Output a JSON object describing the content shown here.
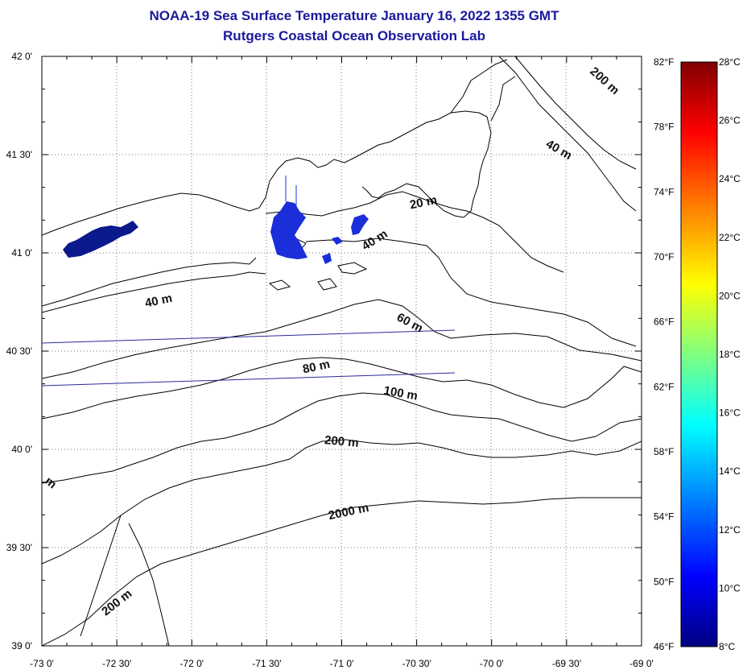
{
  "header": {
    "title": "NOAA-19 Sea Surface Temperature January 16, 2022 1355 GMT",
    "subtitle": "Rutgers Coastal Ocean Observation Lab"
  },
  "map": {
    "latitude_labels": [
      "42 0'",
      "41 30'",
      "41 0'",
      "40 30'",
      "40 0'",
      "39 30'",
      "39 0'"
    ],
    "longitude_labels": [
      "-73 0'",
      "-72 30'",
      "-72 0'",
      "-71 30'",
      "-71 0'",
      "-70 30'",
      "-70 0'",
      "-69 30'",
      "-69 0'"
    ],
    "lat_range": [
      39.0,
      42.0
    ],
    "lon_range": [
      -73.0,
      -69.0
    ],
    "grid": "dotted",
    "contour_labels": [
      "200 m",
      "40 m",
      "20 m",
      "40 m",
      "40 m",
      "60 m",
      "80 m",
      "100 m",
      "200 m",
      "2000 m",
      "200 m",
      "m"
    ],
    "land_color": "#ffffff",
    "sst_patch_colors": [
      "#0a1a8c",
      "#1a2fd9"
    ]
  },
  "colorbar": {
    "fahrenheit_labels": [
      "82°F",
      "78°F",
      "74°F",
      "70°F",
      "66°F",
      "62°F",
      "58°F",
      "54°F",
      "50°F",
      "46°F"
    ],
    "celsius_labels": [
      "28°C",
      "26°C",
      "24°C",
      "22°C",
      "20°C",
      "18°C",
      "16°C",
      "14°C",
      "12°C",
      "10°C",
      "8°C"
    ],
    "colors": [
      "#800000",
      "#ff0000",
      "#ff8000",
      "#ffff00",
      "#80ff80",
      "#00ffff",
      "#0080ff",
      "#0000ff",
      "#000080"
    ]
  }
}
